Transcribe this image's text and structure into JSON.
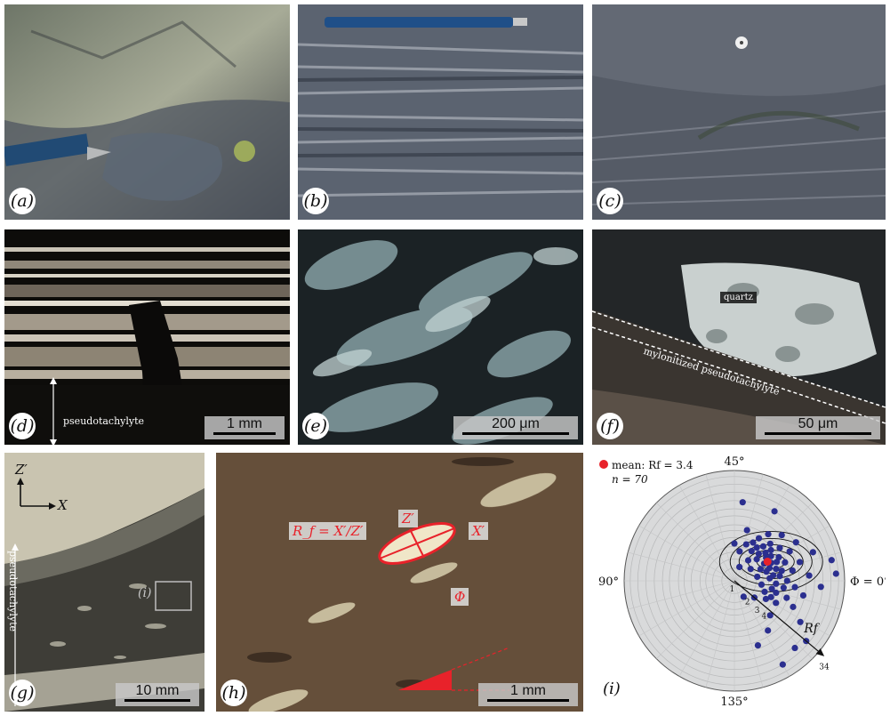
{
  "panels": {
    "a": {
      "label": "(a)"
    },
    "b": {
      "label": "(b)"
    },
    "c": {
      "label": "(c)"
    },
    "d": {
      "label": "(d)",
      "scale": "1 mm",
      "annotation": "pseudotachylyte"
    },
    "e": {
      "label": "(e)",
      "scale": "200 μm"
    },
    "f": {
      "label": "(f)",
      "scale": "50 μm",
      "mineral_tag": "quartz",
      "zone_tag": "mylonitized pseudotachylyte"
    },
    "g": {
      "label": "(g)",
      "scale": "10 mm",
      "annotation": "pseudotachylyte",
      "axis_z": "Z′",
      "axis_x": "X",
      "inset_ref": "(i)"
    },
    "h": {
      "label": "(h)",
      "scale": "1 mm",
      "rf_formula": "R_f = X′/Z′",
      "z_label": "Z′",
      "x_label": "X′",
      "phi_label": "Φ"
    },
    "i": {
      "label": "(i)"
    }
  },
  "colors": {
    "red": "#e8222a",
    "point": "#2b2f8f",
    "mean": "#e8222a",
    "polar_bg": "#d9dadb"
  },
  "chart_data": {
    "type": "scatter",
    "coordinate_system": "polar (Rf, Φ)",
    "legend": "mean: Rf = 3.4",
    "n_label": "n = 70",
    "mean": {
      "Rf": 3.4,
      "phi_deg": 15
    },
    "angle_labels": [
      "45°",
      "Φ = 0°",
      "90°",
      "135°"
    ],
    "radial_tick_labels": [
      "1",
      "2",
      "3",
      "4",
      "34"
    ],
    "radial_axis_label": "Rf",
    "radial_max": 34,
    "points": [
      {
        "Rf": 1.6,
        "phi": 35
      },
      {
        "Rf": 1.9,
        "phi": 18
      },
      {
        "Rf": 2.1,
        "phi": 5
      },
      {
        "Rf": 2.2,
        "phi": 28
      },
      {
        "Rf": 2.4,
        "phi": -4
      },
      {
        "Rf": 2.5,
        "phi": 12
      },
      {
        "Rf": 2.6,
        "phi": 40
      },
      {
        "Rf": 2.7,
        "phi": 22
      },
      {
        "Rf": 2.8,
        "phi": -10
      },
      {
        "Rf": 2.9,
        "phi": 8
      },
      {
        "Rf": 3.0,
        "phi": 30
      },
      {
        "Rf": 3.0,
        "phi": 15
      },
      {
        "Rf": 3.1,
        "phi": 2
      },
      {
        "Rf": 3.2,
        "phi": -15
      },
      {
        "Rf": 3.2,
        "phi": 24
      },
      {
        "Rf": 3.3,
        "phi": 10
      },
      {
        "Rf": 3.4,
        "phi": 36
      },
      {
        "Rf": 3.4,
        "phi": -6
      },
      {
        "Rf": 3.5,
        "phi": 18
      },
      {
        "Rf": 3.5,
        "phi": 4
      },
      {
        "Rf": 3.6,
        "phi": 28
      },
      {
        "Rf": 3.6,
        "phi": -12
      },
      {
        "Rf": 3.7,
        "phi": 13
      },
      {
        "Rf": 3.8,
        "phi": 21
      },
      {
        "Rf": 3.8,
        "phi": -2
      },
      {
        "Rf": 3.9,
        "phi": 32
      },
      {
        "Rf": 4.0,
        "phi": 8
      },
      {
        "Rf": 4.0,
        "phi": -8
      },
      {
        "Rf": 4.1,
        "phi": 17
      },
      {
        "Rf": 4.2,
        "phi": 25
      },
      {
        "Rf": 4.3,
        "phi": 3
      },
      {
        "Rf": 4.4,
        "phi": 12
      },
      {
        "Rf": 4.5,
        "phi": -14
      },
      {
        "Rf": 4.6,
        "phi": 20
      },
      {
        "Rf": 4.7,
        "phi": 6
      },
      {
        "Rf": 4.8,
        "phi": 30
      },
      {
        "Rf": 4.9,
        "phi": -4
      },
      {
        "Rf": 5.0,
        "phi": 14
      },
      {
        "Rf": 5.2,
        "phi": 23
      },
      {
        "Rf": 5.4,
        "phi": 0
      },
      {
        "Rf": 5.6,
        "phi": 10
      },
      {
        "Rf": 5.8,
        "phi": -9
      },
      {
        "Rf": 6.0,
        "phi": 18
      },
      {
        "Rf": 6.3,
        "phi": 27
      },
      {
        "Rf": 6.6,
        "phi": 5
      },
      {
        "Rf": 7.0,
        "phi": -3
      },
      {
        "Rf": 7.4,
        "phi": 14
      },
      {
        "Rf": 7.8,
        "phi": -12
      },
      {
        "Rf": 8.2,
        "phi": 22
      },
      {
        "Rf": 8.8,
        "phi": 8
      },
      {
        "Rf": 9.5,
        "phi": -6
      },
      {
        "Rf": 10.2,
        "phi": 16
      },
      {
        "Rf": 11.0,
        "phi": 2
      },
      {
        "Rf": 12.0,
        "phi": -16
      },
      {
        "Rf": 13.0,
        "phi": 30
      },
      {
        "Rf": 14.5,
        "phi": 10
      },
      {
        "Rf": 16.0,
        "phi": -2
      },
      {
        "Rf": 18.0,
        "phi": -24
      },
      {
        "Rf": 20.0,
        "phi": -20
      },
      {
        "Rf": 22.0,
        "phi": -30
      },
      {
        "Rf": 24.0,
        "phi": 6
      },
      {
        "Rf": 26.0,
        "phi": 2
      },
      {
        "Rf": 12.5,
        "phi": 42
      },
      {
        "Rf": 9.0,
        "phi": -35
      },
      {
        "Rf": 6.8,
        "phi": -28
      },
      {
        "Rf": 5.3,
        "phi": 38
      },
      {
        "Rf": 4.9,
        "phi": -22
      },
      {
        "Rf": 3.3,
        "phi": 45
      },
      {
        "Rf": 2.3,
        "phi": -20
      },
      {
        "Rf": 1.8,
        "phi": -30
      }
    ]
  }
}
